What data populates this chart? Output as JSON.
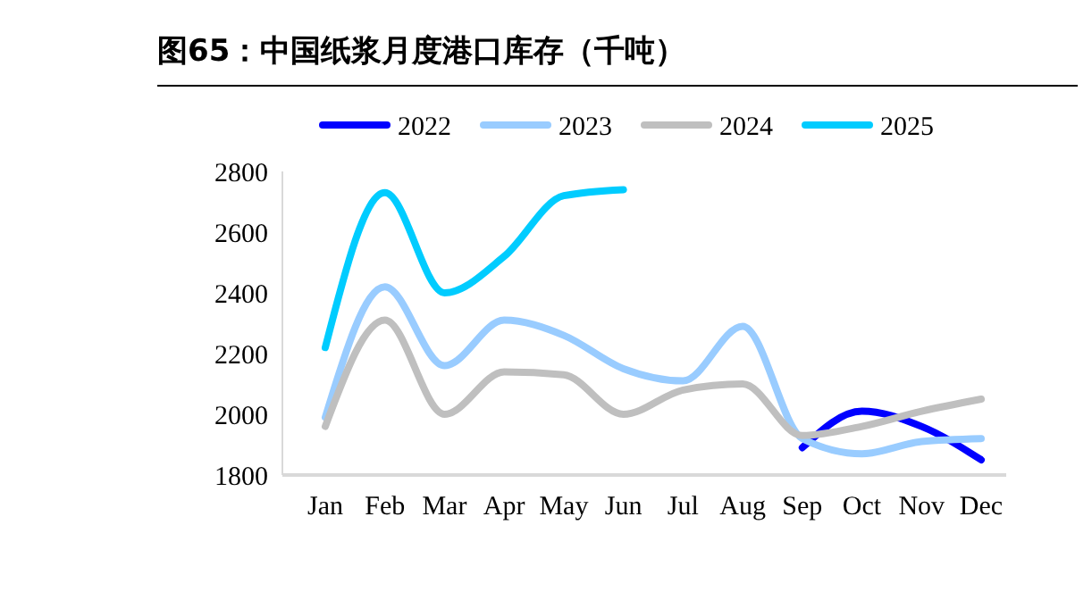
{
  "chart_data": {
    "type": "line",
    "title": "图65：中国纸浆月度港口库存（千吨）",
    "categories": [
      "Jan",
      "Feb",
      "Mar",
      "Apr",
      "May",
      "Jun",
      "Jul",
      "Aug",
      "Sep",
      "Oct",
      "Nov",
      "Dec"
    ],
    "series": [
      {
        "name": "2022",
        "color": "#0000ff",
        "values": [
          null,
          null,
          null,
          null,
          null,
          null,
          null,
          null,
          1890,
          2010,
          1960,
          1850
        ]
      },
      {
        "name": "2023",
        "color": "#99ccff",
        "values": [
          1990,
          2420,
          2160,
          2310,
          2260,
          2150,
          2110,
          2290,
          1920,
          1870,
          1910,
          1920
        ]
      },
      {
        "name": "2024",
        "color": "#bfbfbf",
        "values": [
          1960,
          2310,
          2000,
          2140,
          2130,
          2000,
          2080,
          2100,
          1930,
          1960,
          2010,
          2050
        ]
      },
      {
        "name": "2025",
        "color": "#00ccff",
        "values": [
          2220,
          2730,
          2400,
          2520,
          2720,
          2740,
          null,
          null,
          null,
          null,
          null,
          null
        ]
      }
    ],
    "ylim": [
      1800,
      2800
    ],
    "yticks": [
      1800,
      2000,
      2200,
      2400,
      2600,
      2800
    ],
    "legend": "top",
    "grid": false,
    "line_style": "solid"
  }
}
